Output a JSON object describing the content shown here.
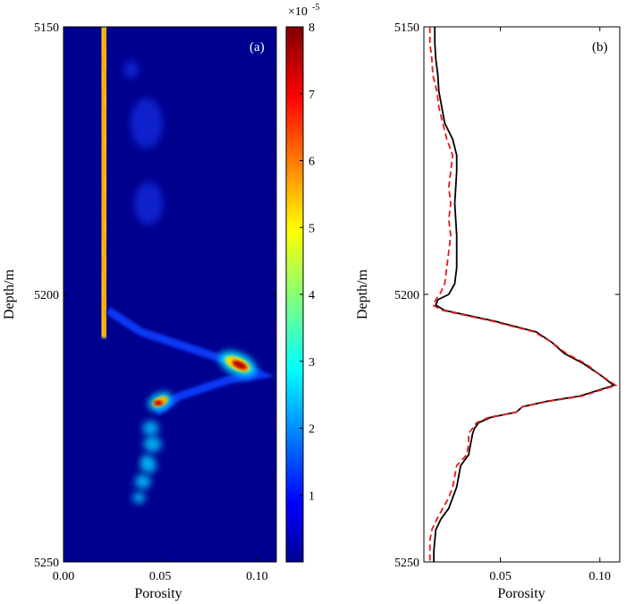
{
  "chart_data": [
    {
      "type": "heatmap",
      "panel_label": "(a)",
      "xlabel": "Porosity",
      "ylabel": "Depth/m",
      "xlim": [
        0.0,
        0.11
      ],
      "ylim": [
        5150,
        5250
      ],
      "y_inverted": true,
      "xticks": [
        "0.00",
        "0.05",
        "0.10"
      ],
      "yticks": [
        "5150",
        "5200",
        "5250"
      ],
      "colormap": "jet",
      "colorbar": {
        "multiplier": "×10",
        "exponent": "-5",
        "ticks": [
          "1",
          "2",
          "3",
          "4",
          "5",
          "6",
          "7",
          "8"
        ],
        "range": [
          0,
          8
        ]
      },
      "ridge_x": [
        0.021,
        0.021,
        0.021,
        0.021,
        0.021,
        0.021,
        0.021,
        0.021,
        0.021,
        0.021,
        0.021,
        0.021,
        0.021,
        0.021,
        0.021,
        0.021,
        0.021,
        0.021,
        0.021,
        0.021,
        0.021,
        0.021,
        0.021,
        0.021,
        0.021,
        0.021,
        0.021,
        0.021,
        0.021,
        0.021,
        0.021,
        0.021,
        0.021,
        0.021,
        0.021,
        0.021,
        0.021,
        0.021,
        0.021,
        0.021,
        0.021,
        0.021,
        0.021,
        0.021,
        0.021,
        0.021,
        0.021,
        0.021,
        0.021,
        0.021,
        0.021,
        0.021,
        0.021,
        0.021,
        0.021,
        0.021,
        0.021,
        0.021,
        0.021,
        0.021,
        0.021,
        0.021,
        0.021,
        0.021,
        0.021,
        0.021,
        0.021,
        0.021,
        0.021,
        0.021,
        0.021,
        0.021,
        0.021,
        0.021,
        0.021,
        0.021,
        0.021,
        0.021,
        0.021,
        0.021,
        0.021,
        0.021,
        0.021,
        0.021,
        0.021,
        0.021,
        0.021,
        0.021,
        0.021,
        0.021,
        0.021,
        0.021,
        0.021,
        0.021,
        0.021,
        0.021,
        0.021,
        0.021,
        0.021,
        0.021,
        0.021
      ]
    },
    {
      "type": "line",
      "panel_label": "(b)",
      "xlabel": "Porosity",
      "ylabel": "Depth/m",
      "xlim": [
        0.0115,
        0.11
      ],
      "ylim": [
        5150,
        5250
      ],
      "y_inverted": true,
      "xticks": [
        "0.05",
        "0.10"
      ],
      "yticks": [
        "5150",
        "5200",
        "5250"
      ],
      "series": [
        {
          "style": "solid",
          "color": "#000000",
          "depth": [
            5150,
            5153,
            5156,
            5159,
            5162,
            5165,
            5168,
            5171,
            5174,
            5177,
            5180,
            5183,
            5186,
            5189,
            5192,
            5195,
            5198,
            5200,
            5201,
            5202,
            5203,
            5205,
            5207,
            5209,
            5211,
            5213,
            5215,
            5217,
            5219,
            5220,
            5221,
            5222,
            5223,
            5224,
            5225,
            5226,
            5228,
            5230,
            5232,
            5234,
            5236,
            5238,
            5240,
            5242,
            5244,
            5246,
            5248,
            5250
          ],
          "porosity": [
            0.017,
            0.017,
            0.0175,
            0.0185,
            0.019,
            0.0205,
            0.022,
            0.026,
            0.028,
            0.028,
            0.0275,
            0.027,
            0.0275,
            0.028,
            0.028,
            0.028,
            0.027,
            0.024,
            0.0185,
            0.0175,
            0.022,
            0.047,
            0.068,
            0.076,
            0.082,
            0.092,
            0.1,
            0.107,
            0.09,
            0.073,
            0.061,
            0.058,
            0.045,
            0.039,
            0.037,
            0.036,
            0.035,
            0.034,
            0.03,
            0.029,
            0.028,
            0.026,
            0.024,
            0.02,
            0.0175,
            0.017,
            0.0165,
            0.0165
          ]
        },
        {
          "style": "dashed",
          "color": "#e8191a",
          "depth": [
            5150,
            5153,
            5156,
            5159,
            5162,
            5165,
            5168,
            5171,
            5174,
            5177,
            5180,
            5183,
            5186,
            5189,
            5192,
            5195,
            5198,
            5200,
            5201,
            5202,
            5203,
            5205,
            5207,
            5209,
            5211,
            5213,
            5215,
            5217,
            5219,
            5220,
            5221,
            5222,
            5223,
            5224,
            5225,
            5226,
            5228,
            5230,
            5232,
            5234,
            5236,
            5238,
            5240,
            5242,
            5244,
            5246,
            5248,
            5250
          ],
          "porosity": [
            0.0145,
            0.0145,
            0.0155,
            0.016,
            0.018,
            0.019,
            0.021,
            0.023,
            0.026,
            0.025,
            0.024,
            0.025,
            0.024,
            0.025,
            0.024,
            0.023,
            0.022,
            0.0195,
            0.0175,
            0.016,
            0.021,
            0.046,
            0.067,
            0.076,
            0.083,
            0.093,
            0.1,
            0.108,
            0.091,
            0.074,
            0.061,
            0.058,
            0.044,
            0.038,
            0.036,
            0.034,
            0.034,
            0.033,
            0.028,
            0.027,
            0.026,
            0.024,
            0.021,
            0.018,
            0.0155,
            0.0145,
            0.0145,
            0.0145
          ]
        }
      ]
    }
  ]
}
